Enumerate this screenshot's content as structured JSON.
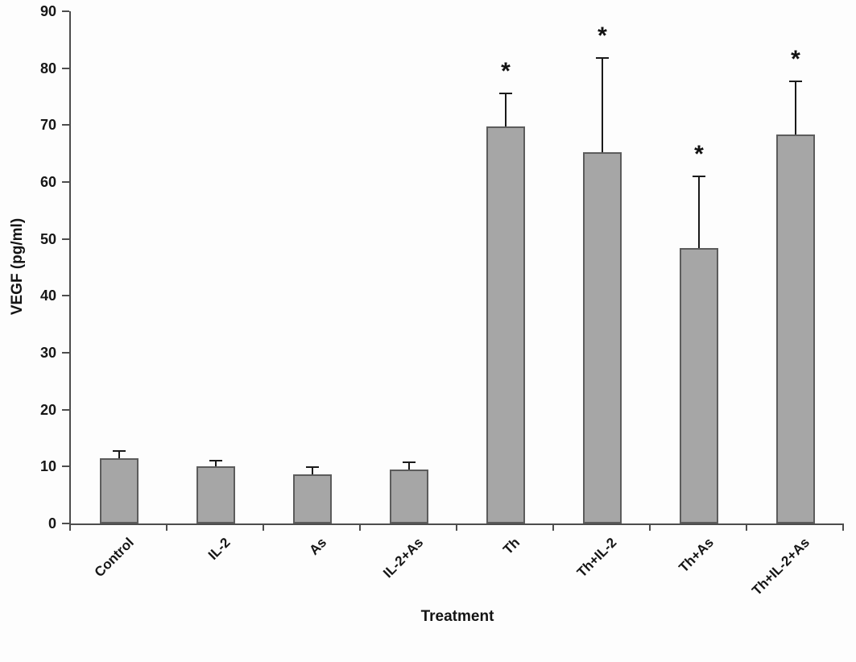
{
  "chart_data": {
    "type": "bar",
    "title": "",
    "xlabel": "Treatment",
    "ylabel": "VEGF (pg/ml)",
    "categories": [
      "Control",
      "IL-2",
      "As",
      "IL-2+As",
      "Th",
      "Th+IL-2",
      "Th+As",
      "Th+IL-2+As"
    ],
    "values": [
      11.4,
      10.1,
      8.6,
      9.5,
      69.8,
      65.2,
      48.4,
      68.4
    ],
    "error_upper": [
      1.4,
      0.9,
      1.3,
      1.3,
      5.8,
      16.6,
      12.6,
      9.3
    ],
    "significant": [
      false,
      false,
      false,
      false,
      true,
      true,
      true,
      true
    ],
    "significance_marker": "*",
    "ylim": [
      0,
      90
    ],
    "ytick_step": 10,
    "ytick_labels": [
      "0",
      "10",
      "20",
      "30",
      "40",
      "50",
      "60",
      "70",
      "80",
      "90"
    ],
    "grid": false,
    "legend": false,
    "bar_color": "#a6a6a6",
    "bar_border_color": "#5c5c5c",
    "error_color": "#1a1a1a",
    "axis_color": "#4d4d4d",
    "text_color": "#161616",
    "background": "#fdfdfd"
  }
}
